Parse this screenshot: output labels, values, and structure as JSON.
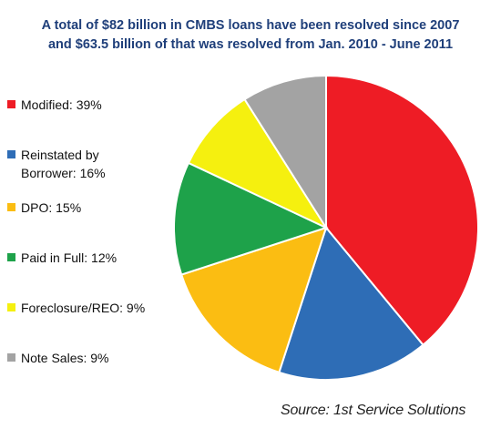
{
  "title_lines": [
    "A total of $82 billion in CMBS loans have been resolved since 2007",
    "and $63.5 billion of that was resolved from Jan. 2010 - June 2011"
  ],
  "source": "Source: 1st Service Solutions",
  "chart_data": {
    "type": "pie",
    "title": "A total of $82 billion in CMBS loans have been resolved since 2007 and $63.5 billion of that was resolved from Jan. 2010 - June 2011",
    "legend_position": "left",
    "categories": [
      "Modified",
      "Reinstated by Borrower",
      "DPO",
      "Paid in Full",
      "Foreclosure/REO",
      "Note Sales"
    ],
    "values": [
      39,
      16,
      15,
      12,
      9,
      9
    ],
    "unit": "%",
    "colors": [
      "#ee1c25",
      "#2e6db6",
      "#fbbd12",
      "#1ea24a",
      "#f5f00f",
      "#a3a3a3"
    ],
    "legend_labels": [
      "Modified: 39%",
      "Reinstated by\nBorrower: 16%",
      "DPO: 15%",
      "Paid in Full: 12%",
      "Foreclosure/REO: 9%",
      "Note Sales: 9%"
    ]
  }
}
